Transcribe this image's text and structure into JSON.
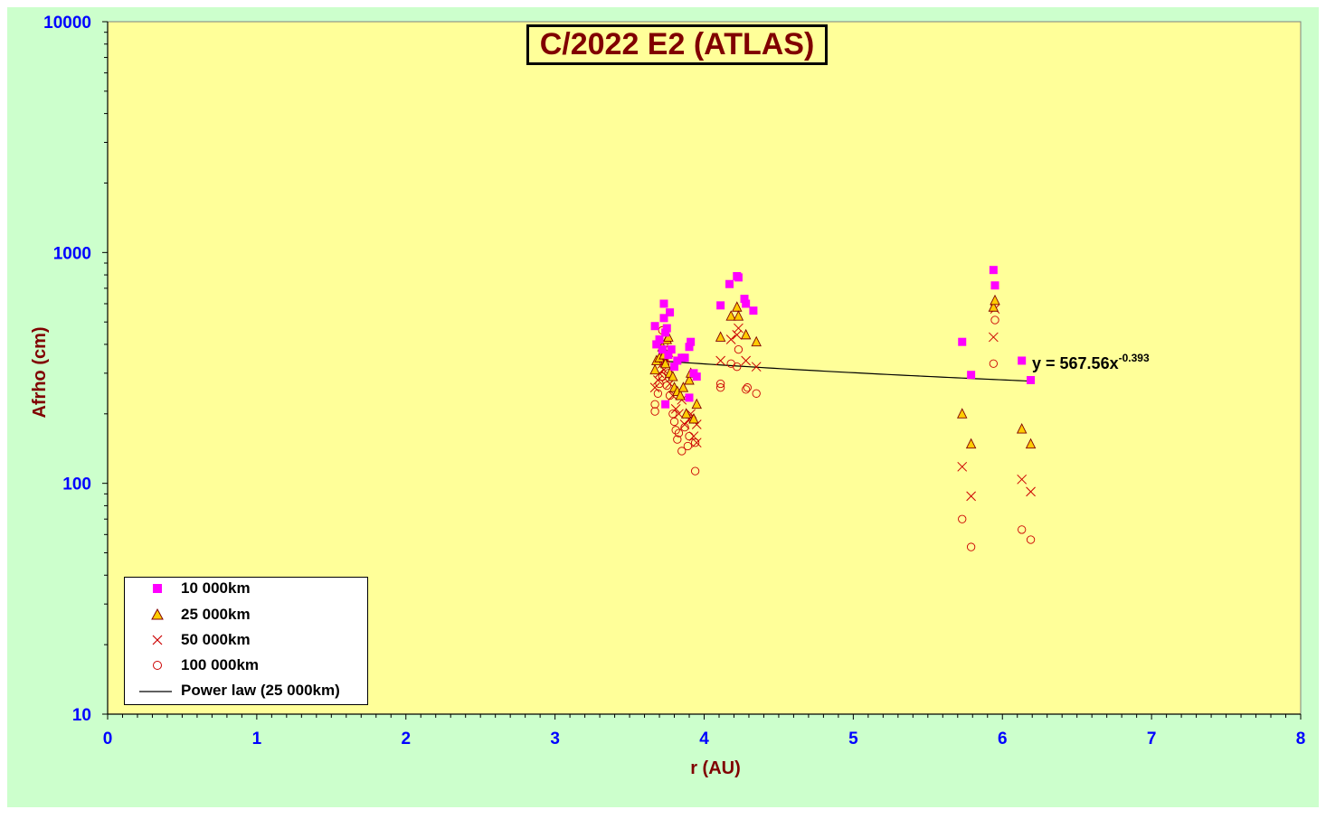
{
  "colors": {
    "outer_bg": "#ccffcc",
    "plot_bg": "#ffff99",
    "axis_tick_color": "#0000ff",
    "axis_title_color": "#800000",
    "series_10k": "#ff00ff",
    "series_25k_fill": "#ffcc00",
    "series_25k_stroke": "#800000",
    "series_50k": "#cc0000",
    "series_100k": "#cc0000",
    "fit_line": "#000000"
  },
  "chart_data": {
    "type": "scatter",
    "title": "C/2022 E2 (ATLAS)",
    "xlabel": "r (AU)",
    "ylabel": "Afrho (cm)",
    "xlim": [
      0,
      8
    ],
    "ylim": [
      10,
      10000
    ],
    "y_scale": "log",
    "x_ticks": [
      "0",
      "1",
      "2",
      "3",
      "4",
      "5",
      "6",
      "7",
      "8"
    ],
    "y_ticks": [
      "10",
      "100",
      "1000",
      "10000"
    ],
    "grid": false,
    "legend_position": "bottom-left",
    "series": [
      {
        "name": "10 000km",
        "marker": "square",
        "points": [
          [
            3.67,
            480
          ],
          [
            3.68,
            400
          ],
          [
            3.7,
            420
          ],
          [
            3.72,
            380
          ],
          [
            3.73,
            600
          ],
          [
            3.73,
            520
          ],
          [
            3.74,
            450
          ],
          [
            3.75,
            470
          ],
          [
            3.76,
            360
          ],
          [
            3.77,
            550
          ],
          [
            3.78,
            380
          ],
          [
            3.8,
            320
          ],
          [
            3.82,
            340
          ],
          [
            3.85,
            350
          ],
          [
            3.87,
            350
          ],
          [
            3.9,
            390
          ],
          [
            3.91,
            410
          ],
          [
            3.93,
            300
          ],
          [
            3.95,
            290
          ],
          [
            3.74,
            220
          ],
          [
            3.9,
            235
          ],
          [
            4.11,
            590
          ],
          [
            4.17,
            730
          ],
          [
            4.22,
            790
          ],
          [
            4.23,
            780
          ],
          [
            4.27,
            630
          ],
          [
            4.28,
            600
          ],
          [
            4.33,
            560
          ],
          [
            5.73,
            410
          ],
          [
            5.79,
            295
          ],
          [
            5.94,
            840
          ],
          [
            5.95,
            720
          ],
          [
            6.13,
            340
          ],
          [
            6.19,
            280
          ]
        ]
      },
      {
        "name": "25 000km",
        "marker": "triangle",
        "points": [
          [
            3.67,
            310
          ],
          [
            3.68,
            340
          ],
          [
            3.7,
            350
          ],
          [
            3.72,
            390
          ],
          [
            3.73,
            360
          ],
          [
            3.74,
            330
          ],
          [
            3.75,
            420
          ],
          [
            3.76,
            430
          ],
          [
            3.77,
            300
          ],
          [
            3.79,
            290
          ],
          [
            3.8,
            260
          ],
          [
            3.82,
            250
          ],
          [
            3.84,
            240
          ],
          [
            3.86,
            260
          ],
          [
            3.88,
            200
          ],
          [
            3.9,
            280
          ],
          [
            3.91,
            300
          ],
          [
            3.93,
            190
          ],
          [
            3.95,
            220
          ],
          [
            4.11,
            430
          ],
          [
            4.18,
            530
          ],
          [
            4.22,
            580
          ],
          [
            4.23,
            530
          ],
          [
            4.28,
            440
          ],
          [
            4.35,
            410
          ],
          [
            5.73,
            200
          ],
          [
            5.79,
            148
          ],
          [
            5.94,
            580
          ],
          [
            5.95,
            620
          ],
          [
            6.13,
            172
          ],
          [
            6.19,
            148
          ]
        ]
      },
      {
        "name": "50 000km",
        "marker": "cross",
        "points": [
          [
            3.67,
            260
          ],
          [
            3.69,
            280
          ],
          [
            3.7,
            300
          ],
          [
            3.72,
            330
          ],
          [
            3.73,
            310
          ],
          [
            3.74,
            350
          ],
          [
            3.75,
            290
          ],
          [
            3.76,
            370
          ],
          [
            3.77,
            270
          ],
          [
            3.79,
            240
          ],
          [
            3.81,
            210
          ],
          [
            3.83,
            200
          ],
          [
            3.85,
            230
          ],
          [
            3.87,
            180
          ],
          [
            3.9,
            190
          ],
          [
            3.91,
            200
          ],
          [
            3.93,
            160
          ],
          [
            3.95,
            180
          ],
          [
            3.95,
            150
          ],
          [
            4.11,
            340
          ],
          [
            4.18,
            420
          ],
          [
            4.22,
            440
          ],
          [
            4.23,
            470
          ],
          [
            4.28,
            340
          ],
          [
            4.35,
            320
          ],
          [
            5.73,
            118
          ],
          [
            5.79,
            88
          ],
          [
            5.94,
            430
          ],
          [
            5.95,
            570
          ],
          [
            6.13,
            104
          ],
          [
            6.19,
            92
          ]
        ]
      },
      {
        "name": "100 000km",
        "marker": "circle",
        "points": [
          [
            3.67,
            220
          ],
          [
            3.67,
            205
          ],
          [
            3.69,
            245
          ],
          [
            3.7,
            270
          ],
          [
            3.72,
            290
          ],
          [
            3.72,
            460
          ],
          [
            3.73,
            400
          ],
          [
            3.74,
            330
          ],
          [
            3.75,
            265
          ],
          [
            3.76,
            300
          ],
          [
            3.77,
            240
          ],
          [
            3.79,
            200
          ],
          [
            3.8,
            185
          ],
          [
            3.81,
            170
          ],
          [
            3.82,
            155
          ],
          [
            3.83,
            165
          ],
          [
            3.85,
            138
          ],
          [
            3.87,
            175
          ],
          [
            3.89,
            145
          ],
          [
            3.9,
            160
          ],
          [
            3.92,
            190
          ],
          [
            3.94,
            150
          ],
          [
            3.94,
            113
          ],
          [
            4.11,
            260
          ],
          [
            4.11,
            270
          ],
          [
            4.18,
            330
          ],
          [
            4.22,
            320
          ],
          [
            4.23,
            380
          ],
          [
            4.28,
            255
          ],
          [
            4.29,
            260
          ],
          [
            4.35,
            245
          ],
          [
            5.73,
            70
          ],
          [
            5.79,
            53
          ],
          [
            5.94,
            330
          ],
          [
            5.95,
            510
          ],
          [
            6.13,
            63
          ],
          [
            6.19,
            57
          ]
        ]
      },
      {
        "name": "Power law (25 000km)",
        "type": "line",
        "equation": "y = 567.56x",
        "exponent": "-0.393",
        "coefficient": 567.56,
        "power": -0.393,
        "x_range": [
          3.67,
          6.19
        ]
      }
    ]
  }
}
